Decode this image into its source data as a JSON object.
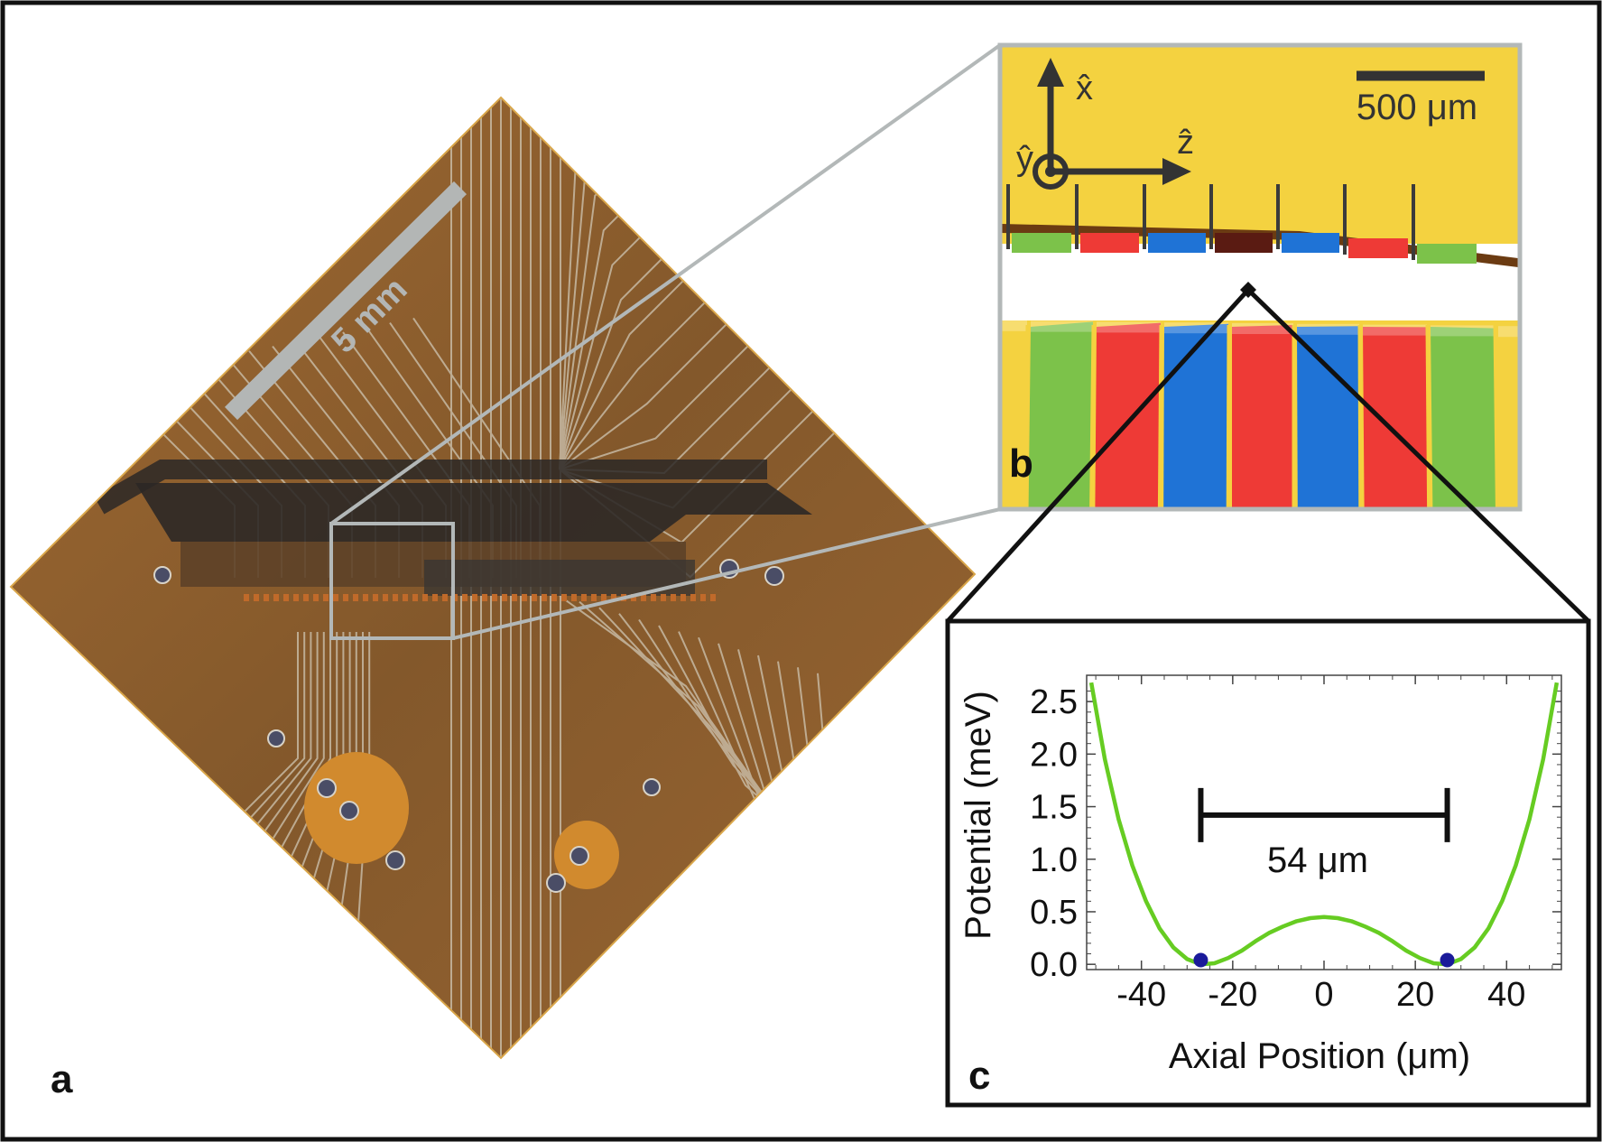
{
  "panels": {
    "a": {
      "label": "a",
      "scale_bar_label": "5 mm",
      "colors": {
        "substrate": "#8a5a2a",
        "trace": "#c9c2b4",
        "slot": "#2b2a2a",
        "pad": "#d08a2e",
        "via": "#4a4d66"
      }
    },
    "b": {
      "label": "b",
      "scale_bar_label": "500 μm",
      "axes": {
        "x": "x̂",
        "y": "ŷ",
        "z": "ẑ"
      },
      "colors": {
        "gold": "#f4d240",
        "red": "#ee3a36",
        "blue": "#1f73d6",
        "green": "#7cc24a",
        "darkred": "#5a1b12"
      }
    },
    "c": {
      "label": "c",
      "separation_label": "54 μm"
    }
  },
  "chart_data": {
    "type": "line",
    "title": "",
    "xlabel": "Axial Position (μm)",
    "ylabel": "Potential (meV)",
    "xlim": [
      -52,
      52
    ],
    "ylim": [
      -0.05,
      2.75
    ],
    "xticks": [
      -40,
      -20,
      0,
      20,
      40
    ],
    "yticks": [
      0.0,
      0.5,
      1.0,
      1.5,
      2.0,
      2.5
    ],
    "ytick_labels": [
      "0.0",
      "0.5",
      "1.0",
      "1.5",
      "2.0",
      "2.5"
    ],
    "series": [
      {
        "color": "#66cc22",
        "x": [
          -51,
          -48,
          -45,
          -42,
          -39,
          -36,
          -33,
          -30,
          -27,
          -24,
          -21,
          -18,
          -15,
          -12,
          -9,
          -6,
          -3,
          0,
          3,
          6,
          9,
          12,
          15,
          18,
          21,
          24,
          27,
          30,
          33,
          36,
          39,
          42,
          45,
          48,
          51
        ],
        "y": [
          2.68,
          1.95,
          1.38,
          0.94,
          0.6,
          0.34,
          0.16,
          0.05,
          0.0,
          0.01,
          0.06,
          0.13,
          0.22,
          0.3,
          0.36,
          0.41,
          0.44,
          0.45,
          0.44,
          0.41,
          0.36,
          0.3,
          0.22,
          0.13,
          0.06,
          0.01,
          0.0,
          0.05,
          0.16,
          0.34,
          0.6,
          0.94,
          1.38,
          1.95,
          2.68
        ]
      }
    ],
    "ions": {
      "x": [
        -27,
        27
      ],
      "y": [
        0.04,
        0.04
      ],
      "color": "#1a1a9a"
    },
    "separation_bar": {
      "x_start": -27,
      "x_end": 27,
      "y": 1.42
    }
  }
}
